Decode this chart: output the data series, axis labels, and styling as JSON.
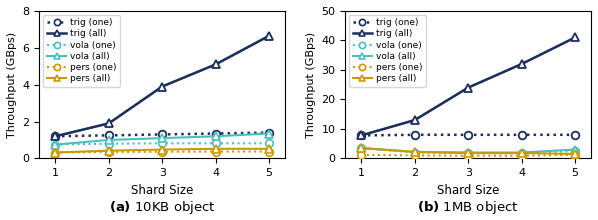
{
  "x": [
    1,
    2,
    3,
    4,
    5
  ],
  "left": {
    "trig_one": [
      1.2,
      1.25,
      1.3,
      1.35,
      1.4
    ],
    "trig_all": [
      1.2,
      1.9,
      3.9,
      5.1,
      6.65
    ],
    "vola_one": [
      0.75,
      0.8,
      0.82,
      0.82,
      0.82
    ],
    "vola_all": [
      0.75,
      1.0,
      1.1,
      1.2,
      1.35
    ],
    "pers_one": [
      0.32,
      0.35,
      0.36,
      0.37,
      0.37
    ],
    "pers_all": [
      0.32,
      0.42,
      0.48,
      0.52,
      0.52
    ],
    "ylim": [
      0,
      8
    ],
    "yticks": [
      0,
      2,
      4,
      6,
      8
    ],
    "title": "(a) 10KB object"
  },
  "right": {
    "trig_one": [
      7.8,
      8.0,
      8.0,
      8.0,
      8.0
    ],
    "trig_all": [
      7.8,
      13.0,
      24.0,
      32.0,
      41.0
    ],
    "vola_one": [
      3.5,
      2.0,
      1.8,
      1.8,
      2.5
    ],
    "vola_all": [
      3.5,
      2.2,
      2.0,
      2.0,
      3.0
    ],
    "pers_one": [
      1.2,
      1.0,
      0.9,
      0.9,
      1.2
    ],
    "pers_all": [
      3.5,
      2.2,
      1.8,
      1.8,
      1.5
    ],
    "ylim": [
      0,
      50
    ],
    "yticks": [
      0,
      10,
      20,
      30,
      40,
      50
    ],
    "title": "(b) 1MB object"
  },
  "colors": {
    "trig": "#1a2f5e",
    "vola": "#4bbfbf",
    "pers": "#cc9900"
  },
  "gray": "#aaaaaa",
  "xlabel": "Shard Size",
  "ylabel": "Throughput (GBps)",
  "subtitle_left": "(a) 10KB object",
  "subtitle_right": "(b) 1MB object",
  "legend_labels": [
    "trig (one)",
    "trig (all)",
    "vola (one)",
    "vola (all)",
    "pers (one)",
    "pers (all)"
  ]
}
